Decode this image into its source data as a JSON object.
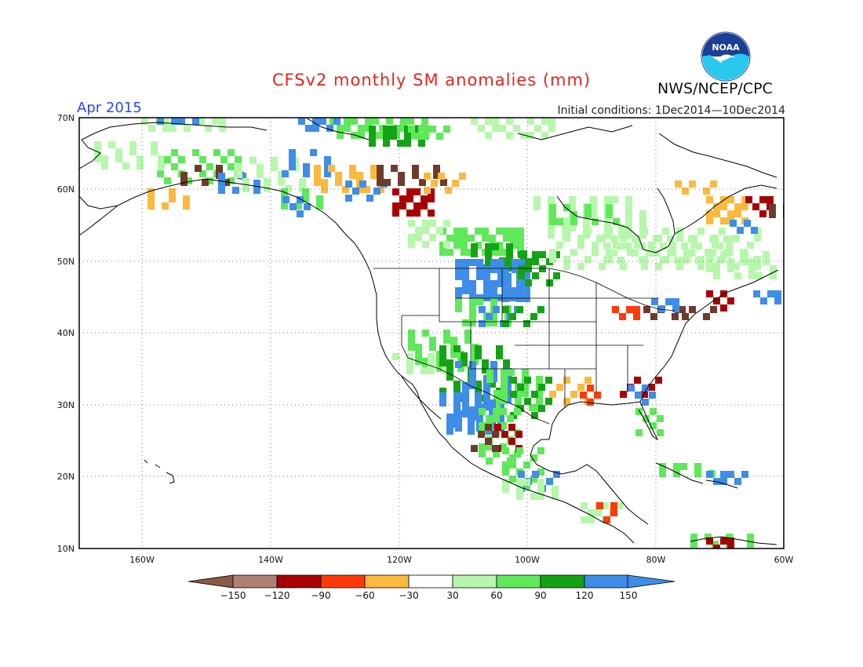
{
  "title": "CFSv2 monthly SM anomalies (mm)",
  "agency": "NWS/NCEP/CPC",
  "logo_text": "NOAA",
  "valid_month": "Apr 2015",
  "initial_conditions": "Initial conditions: 1Dec2014—10Dec2014",
  "lat_ticks": [
    "70N",
    "60N",
    "50N",
    "40N",
    "30N",
    "20N",
    "10N"
  ],
  "lon_ticks": [
    "160W",
    "140W",
    "120W",
    "100W",
    "80W",
    "60W"
  ],
  "colorbar": {
    "labels": [
      "−150",
      "−120",
      "−90",
      "−60",
      "−30",
      "30",
      "60",
      "90",
      "120",
      "150"
    ],
    "colors": [
      "#8a5a44",
      "#b07f73",
      "#a80000",
      "#ff3a0a",
      "#fbb93f",
      "#ffffff",
      "#b6f7ab",
      "#5fe85a",
      "#14a314",
      "#3e8de8",
      "#3e8de8"
    ]
  },
  "legend_colors": {
    "dry_extreme": "#6e3b2b",
    "dry_strong": "#a80000",
    "dry_moderate": "#ff3a0a",
    "dry_weak": "#fbb93f",
    "wet_weak": "#b6f7ab",
    "wet_moderate": "#5fe85a",
    "wet_strong": "#14a314",
    "wet_extreme": "#3e8de8"
  }
}
